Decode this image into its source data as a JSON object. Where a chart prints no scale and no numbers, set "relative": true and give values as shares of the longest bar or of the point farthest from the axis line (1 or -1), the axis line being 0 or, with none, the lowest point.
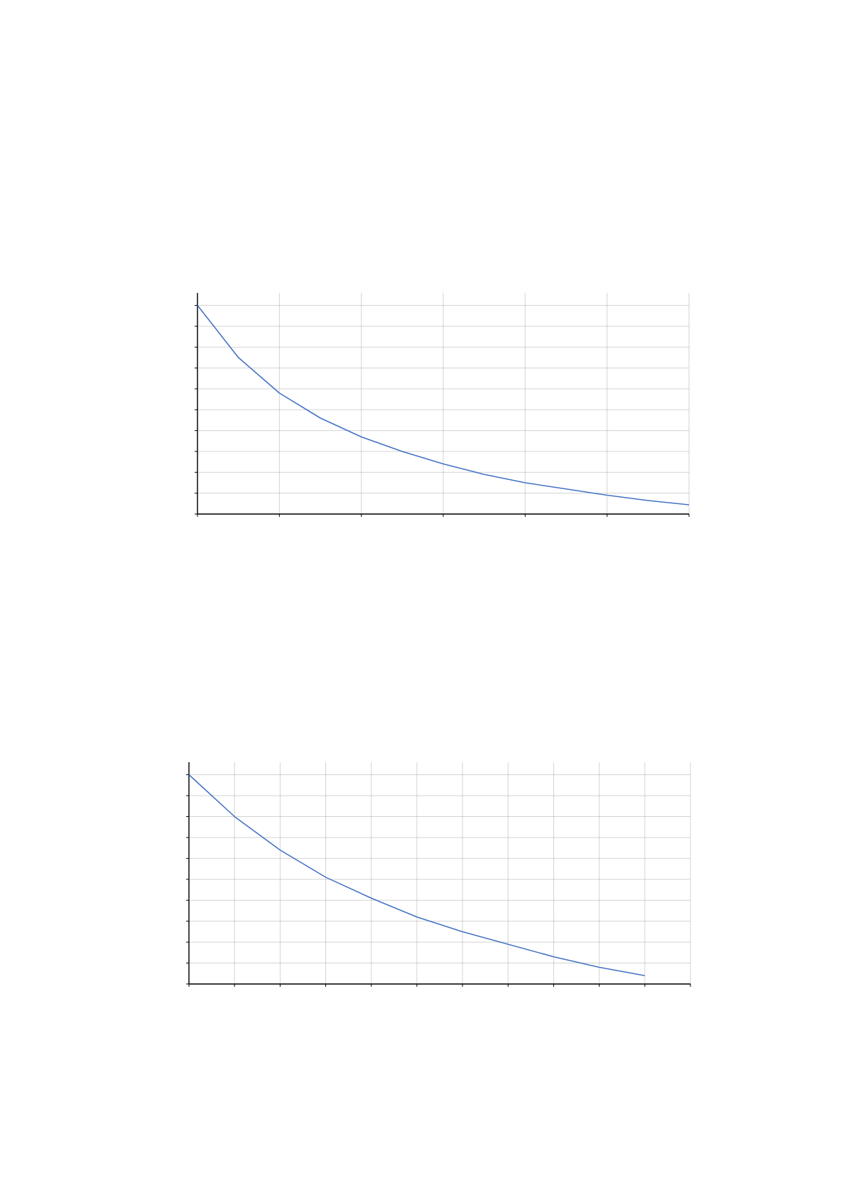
{
  "chart_data": [
    {
      "type": "line",
      "relative": true,
      "color": "#4472c4",
      "grid": true,
      "categories": [
        null,
        null,
        null,
        null,
        null,
        null,
        null,
        null,
        null,
        null,
        null,
        null,
        null
      ],
      "values": [
        1,
        0.75,
        0.58,
        0.46,
        0.37,
        0.3,
        0.24,
        0.19,
        0.15,
        0.12,
        0.09,
        0.065,
        0.044
      ]
    },
    {
      "type": "line",
      "relative": true,
      "color": "#4472c4",
      "grid": true,
      "categories": [
        null,
        null,
        null,
        null,
        null,
        null,
        null,
        null,
        null,
        null,
        null
      ],
      "values": [
        1,
        0.8,
        0.64,
        0.51,
        0.41,
        0.32,
        0.25,
        0.19,
        0.13,
        0.08,
        0.04
      ]
    }
  ]
}
